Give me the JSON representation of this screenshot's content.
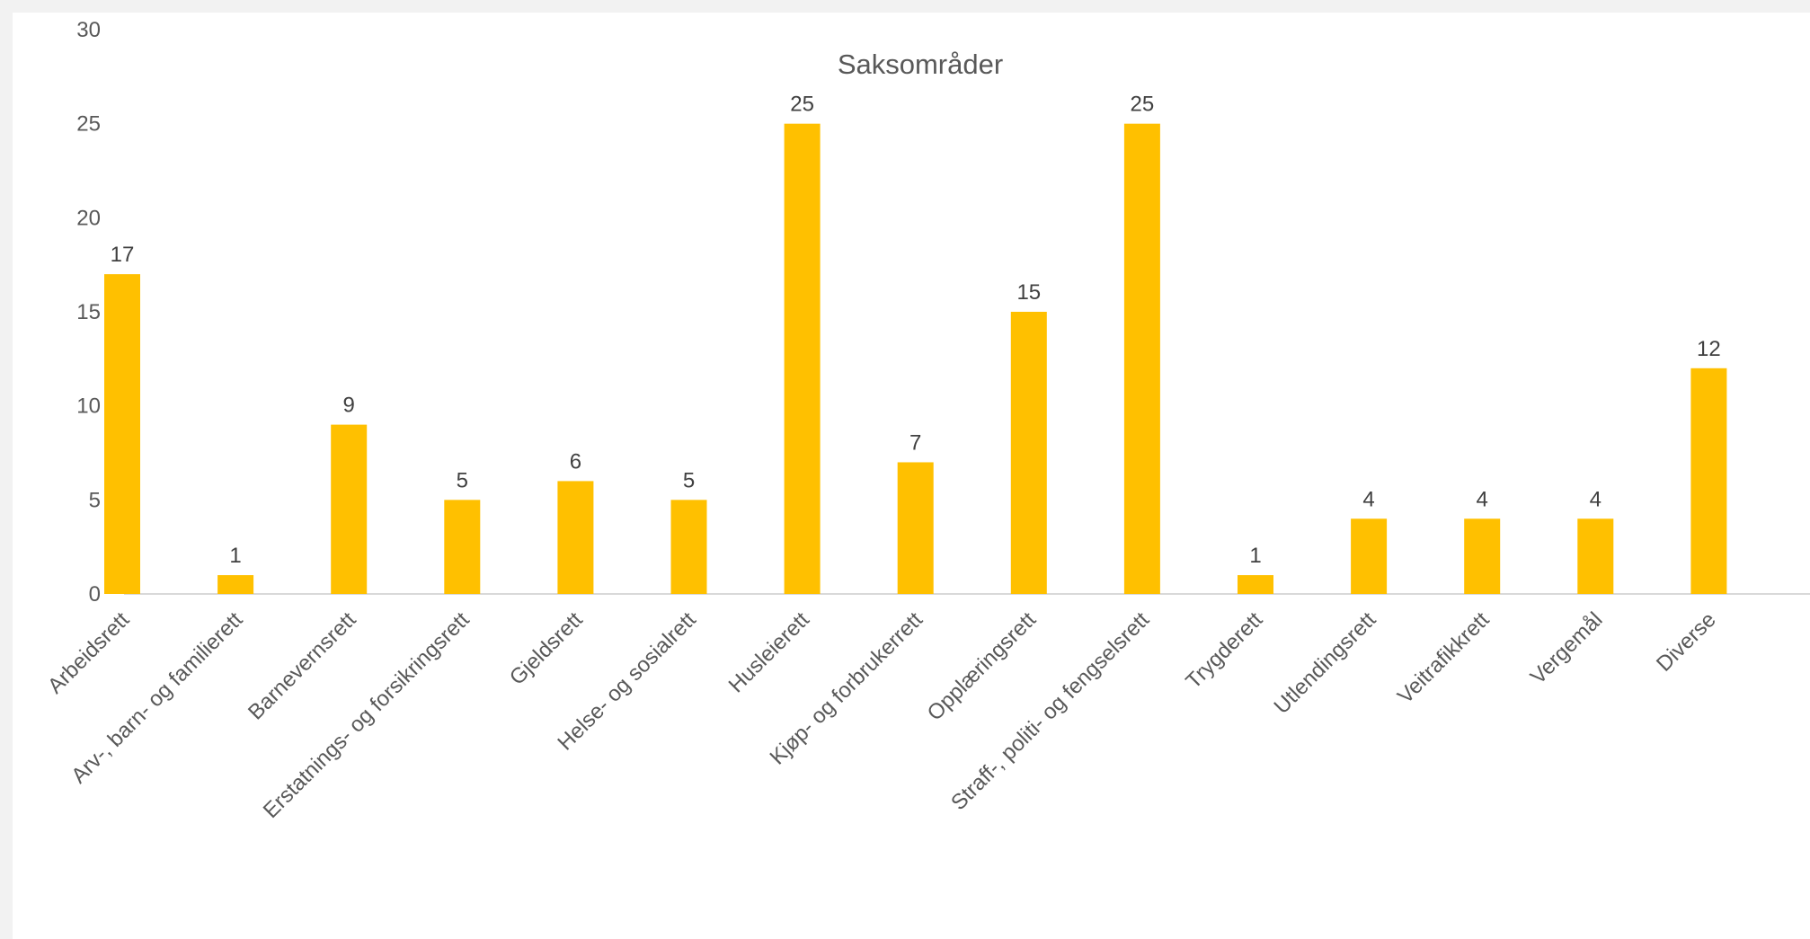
{
  "chart_data": {
    "type": "bar",
    "title": "Saksområder",
    "xlabel": "",
    "ylabel": "",
    "ylim": [
      0,
      30
    ],
    "yticks": [
      0,
      5,
      10,
      15,
      20,
      25,
      30
    ],
    "grid": false,
    "legend": "none",
    "categories": [
      "Arbeidsrett",
      "Arv-, barn- og familierett",
      "Barnevernsrett",
      "Erstatnings- og forsikringsrett",
      "Gjeldsrett",
      "Helse- og sosialrett",
      "Husleierett",
      "Kjøp- og forbrukerrett",
      "Opplæringsrett",
      "Straff-, politi- og fengselsrett",
      "Trygderett",
      "Utlendingsrett",
      "Veitrafikkrett",
      "Vergemål",
      "Diverse"
    ],
    "values": [
      17,
      1,
      9,
      5,
      6,
      5,
      25,
      7,
      15,
      25,
      1,
      4,
      4,
      4,
      12
    ],
    "colors": {
      "bar": "#FFC000",
      "axis": "#d9d9d9"
    }
  }
}
